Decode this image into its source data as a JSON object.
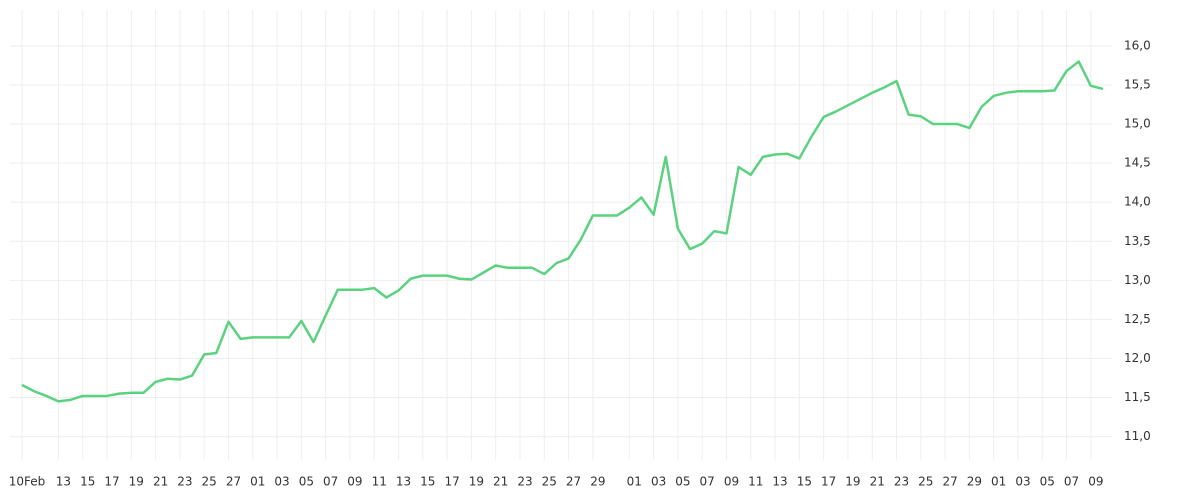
{
  "chart_data": {
    "type": "line",
    "categories": [
      "10Feb",
      null,
      null,
      "13",
      null,
      "15",
      null,
      "17",
      null,
      "19",
      null,
      "21",
      null,
      "23",
      null,
      "25",
      null,
      "27",
      null,
      "01",
      null,
      "03",
      null,
      "05",
      null,
      "07",
      null,
      "09",
      null,
      "11",
      null,
      "13",
      null,
      "15",
      null,
      "17",
      null,
      "19",
      null,
      "21",
      null,
      "23",
      null,
      "25",
      null,
      "27",
      null,
      "29",
      null,
      null,
      "01",
      null,
      "03",
      null,
      "05",
      null,
      "07",
      null,
      "09",
      null,
      "11",
      null,
      "13",
      null,
      "15",
      null,
      "17",
      null,
      "19",
      null,
      "21",
      null,
      "23",
      null,
      "25",
      null,
      "27",
      null,
      "29",
      null,
      "01",
      null,
      "03",
      null,
      "05",
      null,
      "07",
      null,
      "09",
      null
    ],
    "values": [
      11.66,
      11.58,
      11.52,
      11.45,
      11.47,
      11.52,
      11.52,
      11.52,
      11.55,
      11.56,
      11.56,
      11.7,
      11.74,
      11.73,
      11.78,
      12.05,
      12.07,
      12.47,
      12.25,
      12.27,
      12.27,
      12.27,
      12.27,
      12.48,
      12.21,
      12.55,
      12.88,
      12.88,
      12.88,
      12.9,
      12.78,
      12.87,
      13.02,
      13.06,
      13.06,
      13.06,
      13.02,
      13.01,
      13.1,
      13.19,
      13.16,
      13.16,
      13.16,
      13.08,
      13.22,
      13.28,
      13.52,
      13.83,
      13.83,
      13.83,
      13.93,
      14.06,
      13.84,
      14.58,
      13.66,
      13.4,
      13.47,
      13.63,
      13.6,
      14.45,
      14.35,
      14.58,
      14.61,
      14.62,
      14.56,
      14.84,
      15.09,
      15.16,
      15.24,
      15.32,
      15.4,
      15.47,
      15.55,
      15.12,
      15.1,
      15.0,
      15.0,
      15.0,
      14.95,
      15.22,
      15.36,
      15.4,
      15.42,
      15.42,
      15.42,
      15.43,
      15.68,
      15.8,
      15.49,
      15.45
    ],
    "color": "#5ad27f",
    "ylim": [
      10.7,
      16.46
    ],
    "yticks": [
      {
        "value": 11,
        "label": "11,0"
      },
      {
        "value": 11.5,
        "label": "11,5"
      },
      {
        "value": 12,
        "label": "12,0"
      },
      {
        "value": 12.5,
        "label": "12,5"
      },
      {
        "value": 13,
        "label": "13,0"
      },
      {
        "value": 13.5,
        "label": "13,5"
      },
      {
        "value": 14,
        "label": "14,0"
      },
      {
        "value": 14.5,
        "label": "14,5"
      },
      {
        "value": 15,
        "label": "15,0"
      },
      {
        "value": 15.5,
        "label": "15,5"
      },
      {
        "value": 16,
        "label": "16,0"
      }
    ],
    "grid": true
  }
}
